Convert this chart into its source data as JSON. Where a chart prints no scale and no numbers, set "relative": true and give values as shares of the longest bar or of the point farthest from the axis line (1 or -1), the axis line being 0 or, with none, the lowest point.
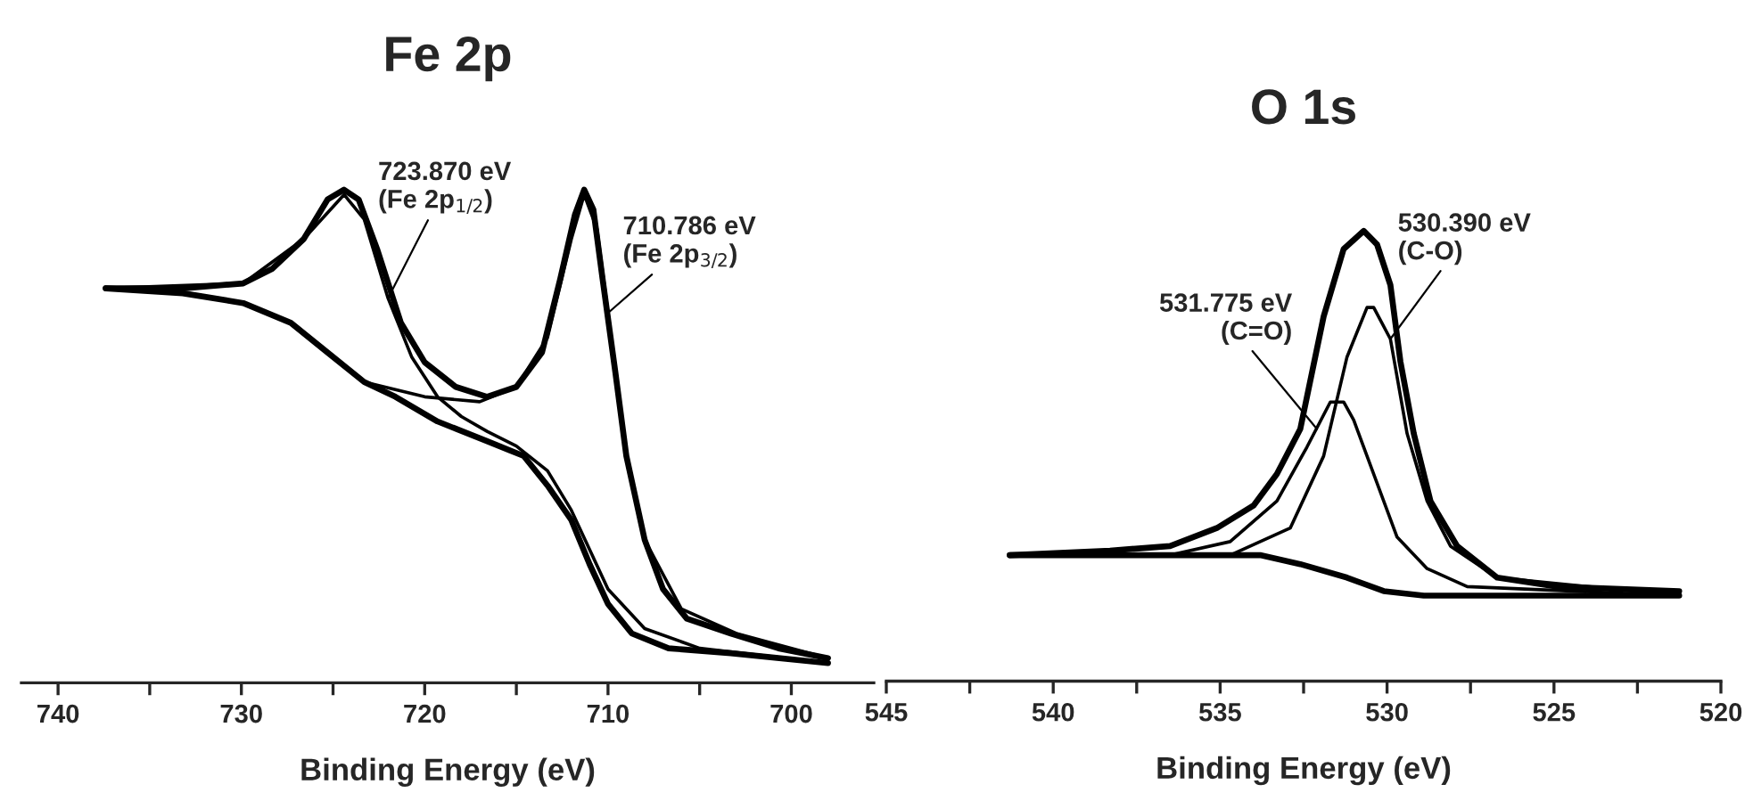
{
  "chart_data": [
    {
      "type": "line",
      "title": "Fe 2p",
      "xlabel": "Binding Energy (eV)",
      "relative": true,
      "xlim": [
        742,
        695.5
      ],
      "xticks": [
        740,
        {
          "value": 735,
          "label": null
        },
        730,
        {
          "value": 725,
          "label": null
        },
        720,
        {
          "value": 715,
          "label": null
        },
        710,
        {
          "value": 705,
          "label": null
        },
        700
      ],
      "series": [
        {
          "color": "#000000",
          "x": [
            737.4,
            733.2,
            729.9,
            728.3,
            726.6,
            725.3,
            724.4,
            723.6,
            722.6,
            721.3,
            720.0,
            718.3,
            716.6,
            715.0,
            713.6,
            712.6,
            711.8,
            711.3,
            710.8,
            710.3,
            709.6,
            709.0,
            708.0,
            707.0,
            705.7,
            703.3,
            700.7,
            698.0
          ],
          "values": [
            0.8,
            0.8,
            0.81,
            0.84,
            0.9,
            0.98,
            1.0,
            0.98,
            0.88,
            0.73,
            0.65,
            0.6,
            0.58,
            0.6,
            0.67,
            0.82,
            0.95,
            1.0,
            0.96,
            0.82,
            0.63,
            0.46,
            0.29,
            0.19,
            0.13,
            0.1,
            0.07,
            0.05
          ]
        },
        {
          "color": "#000000",
          "x": [
            737.4,
            733.2,
            729.9,
            727.3,
            725.3,
            723.3,
            721.6,
            719.3,
            716.6,
            714.6,
            713.3,
            712.0,
            711.0,
            710.0,
            708.7,
            706.7,
            703.3,
            698.0
          ],
          "values": [
            0.8,
            0.79,
            0.77,
            0.73,
            0.67,
            0.61,
            0.58,
            0.53,
            0.49,
            0.46,
            0.4,
            0.33,
            0.24,
            0.16,
            0.1,
            0.07,
            0.06,
            0.04
          ]
        },
        {
          "color": "#000000",
          "x": [
            737.4,
            729.9,
            726.6,
            724.4,
            723.3,
            722.0,
            720.7,
            719.3,
            718.0,
            716.6,
            715.0,
            713.3,
            712.0,
            710.0,
            708.0,
            705.0,
            698.0
          ],
          "values": [
            0.8,
            0.81,
            0.9,
            0.99,
            0.94,
            0.78,
            0.66,
            0.58,
            0.54,
            0.51,
            0.48,
            0.43,
            0.35,
            0.19,
            0.11,
            0.07,
            0.04
          ]
        },
        {
          "color": "#000000",
          "x": [
            723.3,
            720.0,
            717.0,
            715.0,
            713.3,
            712.0,
            711.3,
            710.6,
            710.0,
            709.0,
            708.0,
            706.0,
            703.0,
            698.0
          ],
          "values": [
            0.61,
            0.58,
            0.57,
            0.6,
            0.7,
            0.9,
            0.99,
            0.92,
            0.75,
            0.46,
            0.29,
            0.15,
            0.1,
            0.05
          ]
        }
      ],
      "annotations": [
        {
          "text": "723.870 eV\n(Fe 2p$_{1/2}$)",
          "x": 722.0,
          "y": 0.78
        },
        {
          "text": "710.786 eV\n(Fe 2p$_{3/2}$)",
          "x": 710.0,
          "y": 0.75
        }
      ]
    },
    {
      "type": "line",
      "title": "O 1s",
      "xlabel": "Binding Energy (eV)",
      "relative": true,
      "xlim": [
        545,
        520
      ],
      "xticks": [
        545,
        {
          "value": 542.5,
          "label": null
        },
        540,
        {
          "value": 537.5,
          "label": null
        },
        535,
        {
          "value": 532.5,
          "label": null
        },
        530,
        {
          "value": 527.5,
          "label": null
        },
        525,
        {
          "value": 522.5,
          "label": null
        },
        520
      ],
      "series": [
        {
          "color": "#000000",
          "x": [
            541.3,
            538.3,
            536.5,
            535.1,
            534.0,
            533.3,
            532.6,
            531.9,
            531.3,
            530.7,
            530.3,
            529.9,
            529.6,
            529.2,
            528.7,
            527.9,
            526.7,
            524.9,
            521.25
          ],
          "values": [
            0.28,
            0.29,
            0.3,
            0.34,
            0.39,
            0.46,
            0.56,
            0.81,
            0.96,
            1.0,
            0.97,
            0.88,
            0.71,
            0.55,
            0.4,
            0.3,
            0.23,
            0.21,
            0.2
          ]
        },
        {
          "color": "#000000",
          "x": [
            541.3,
            533.8,
            532.6,
            531.2,
            530.1,
            528.9,
            521.25
          ],
          "values": [
            0.28,
            0.28,
            0.26,
            0.23,
            0.2,
            0.19,
            0.19
          ]
        },
        {
          "color": "#000000",
          "x": [
            541.3,
            536.5,
            534.7,
            533.3,
            532.4,
            531.7,
            531.3,
            531.0,
            530.4,
            529.7,
            528.8,
            527.6,
            521.25
          ],
          "values": [
            0.28,
            0.28,
            0.31,
            0.4,
            0.52,
            0.62,
            0.62,
            0.58,
            0.46,
            0.32,
            0.25,
            0.21,
            0.19
          ]
        },
        {
          "color": "#000000",
          "x": [
            541.3,
            534.7,
            532.9,
            531.9,
            531.2,
            530.6,
            530.4,
            529.9,
            529.4,
            528.8,
            528.1,
            526.7,
            521.25
          ],
          "values": [
            0.28,
            0.28,
            0.34,
            0.5,
            0.72,
            0.83,
            0.83,
            0.76,
            0.55,
            0.4,
            0.3,
            0.23,
            0.19
          ]
        }
      ],
      "annotations": [
        {
          "text": "531.775 eV\n(C=O)",
          "x": 532.1,
          "y": 0.56
        },
        {
          "text": "530.390 eV\n(C-O)",
          "x": 529.9,
          "y": 0.76
        }
      ]
    }
  ]
}
